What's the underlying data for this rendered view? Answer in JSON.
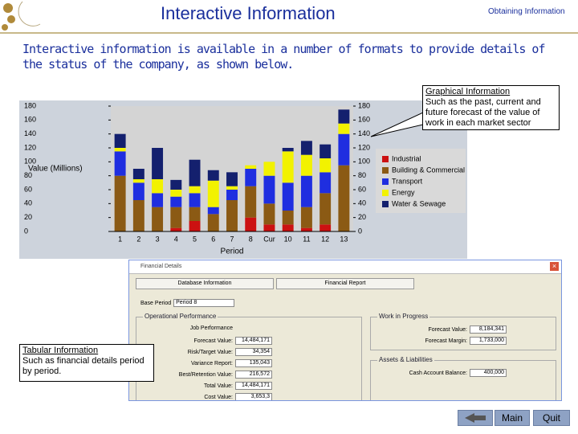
{
  "header": {
    "title": "Interactive Information",
    "section": "Obtaining Information"
  },
  "intro": "Interactive information is available in a number of formats to provide details of the status of the company, as shown below.",
  "chart_data": {
    "type": "stacked_bar",
    "ylabel": "Value (Millions)",
    "xlabel": "Period",
    "categories": [
      "1",
      "2",
      "3",
      "4",
      "5",
      "6",
      "7",
      "8",
      "Cur",
      "10",
      "11",
      "12",
      "13"
    ],
    "series": [
      {
        "name": "Industrial",
        "color": "#cc1111",
        "values": [
          0,
          0,
          0,
          5,
          15,
          0,
          0,
          20,
          10,
          10,
          5,
          10,
          0
        ]
      },
      {
        "name": "Building & Commercial",
        "color": "#8b5a14",
        "values": [
          80,
          45,
          35,
          30,
          20,
          25,
          45,
          45,
          30,
          20,
          30,
          45,
          95
        ]
      },
      {
        "name": "Transport",
        "color": "#1f2ee0",
        "values": [
          35,
          25,
          20,
          15,
          20,
          10,
          15,
          25,
          40,
          40,
          45,
          30,
          45
        ]
      },
      {
        "name": "Energy",
        "color": "#f2f200",
        "values": [
          5,
          5,
          20,
          10,
          10,
          38,
          5,
          5,
          20,
          45,
          30,
          20,
          15
        ]
      },
      {
        "name": "Water & Sewage",
        "color": "#14206e",
        "values": [
          20,
          15,
          45,
          14,
          38,
          15,
          20,
          0,
          0,
          5,
          20,
          20,
          20
        ]
      }
    ],
    "ylim": [
      0,
      180
    ],
    "yticks": [
      0,
      20,
      40,
      60,
      80,
      100,
      120,
      140,
      160,
      180
    ],
    "y2lim": [
      0,
      180
    ],
    "y2ticks": [
      0,
      20,
      40,
      60,
      80,
      100,
      120,
      140,
      160,
      180
    ],
    "grid": false,
    "legend": "right"
  },
  "callouts": [
    {
      "title": "Graphical Information",
      "text": "Such as the past, current and future forecast of the value of work in each market sector"
    },
    {
      "title": "Tabular Information",
      "text": "Such as financial details period by period."
    }
  ],
  "dialog": {
    "title": "Financial Details",
    "tabs": [
      "Database Information",
      "Financial Report"
    ],
    "base_label": "Base Period",
    "base_value": "Period 8",
    "groups": [
      {
        "title": "Operational Performance",
        "rows": [
          [
            "Job Performance",
            ""
          ],
          [
            "Forecast Value:",
            "14,484,171"
          ],
          [
            "Risk/Target Value:",
            "34,354"
          ],
          [
            "Variance Report:",
            "135,043"
          ],
          [
            "Best/Retention Value:",
            "216,572"
          ],
          [
            "Total Value:",
            "14,484,171"
          ],
          [
            "Cost Value:",
            "3,653,3"
          ]
        ]
      },
      {
        "title": "Work in Progress",
        "rows": [
          [
            "Forecast Value:",
            "8,184,341"
          ],
          [
            "Forecast Margin:",
            "1,733,000"
          ]
        ]
      },
      {
        "title": "Assets & Liabilities",
        "rows": [
          [
            "Cash Account Balance:",
            "400,000"
          ]
        ]
      }
    ]
  },
  "buttons": [
    "Main",
    "Quit"
  ]
}
